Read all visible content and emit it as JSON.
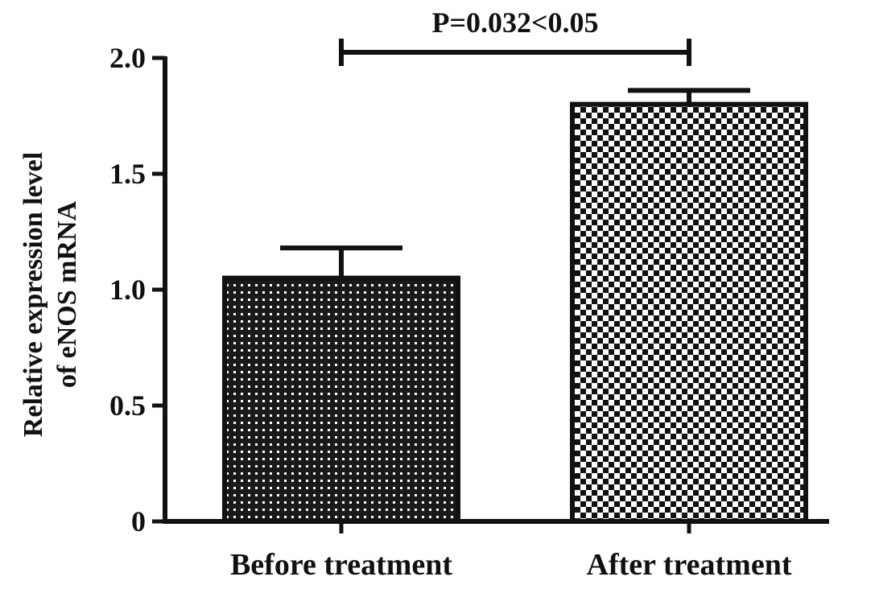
{
  "chart_data": {
    "type": "bar",
    "categories": [
      "Before treatment",
      "After treatment"
    ],
    "values": [
      1.05,
      1.8
    ],
    "error_upper": [
      0.13,
      0.06
    ],
    "ylabel_lines": [
      "Relative expression level",
      "of eNOS mRNA"
    ],
    "xlabel": "",
    "ylim": [
      0,
      2.0
    ],
    "yticks": [
      0,
      0.5,
      1.0,
      1.5,
      2.0
    ],
    "ytick_labels": [
      "0",
      "0.5",
      "1.0",
      "1.5",
      "2.0"
    ],
    "grid": false,
    "significance": {
      "label": "P=0.032<0.05",
      "between": [
        "Before treatment",
        "After treatment"
      ]
    },
    "bar_patterns": [
      "fine-dots",
      "checkerboard"
    ],
    "colors": {
      "ink": "#111111",
      "background": "#ffffff"
    }
  }
}
